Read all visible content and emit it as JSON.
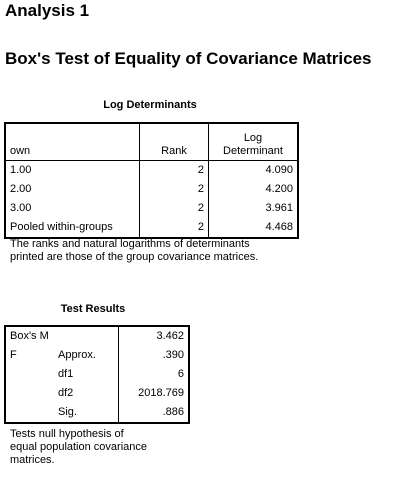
{
  "analysis_title": "Analysis 1",
  "test_title": "Box's Test of Equality of Covariance Matrices",
  "log_determinants": {
    "caption": "Log Determinants",
    "headers": {
      "group": "own",
      "rank": "Rank",
      "logdet_line1": "Log",
      "logdet_line2": "Determinant"
    },
    "rows": [
      {
        "group": "1.00",
        "rank": "2",
        "logdet": "4.090"
      },
      {
        "group": "2.00",
        "rank": "2",
        "logdet": "4.200"
      },
      {
        "group": "3.00",
        "rank": "2",
        "logdet": "3.961"
      },
      {
        "group": "Pooled within-groups",
        "rank": "2",
        "logdet": "4.468"
      }
    ],
    "note_line1": "The ranks and natural logarithms of determinants",
    "note_line2": "printed are those of the group covariance matrices."
  },
  "test_results": {
    "caption": "Test Results",
    "boxm_label": "Box's M",
    "boxm_value": "3.462",
    "f_label": "F",
    "rows": [
      {
        "label": "Approx.",
        "value": ".390"
      },
      {
        "label": "df1",
        "value": "6"
      },
      {
        "label": "df2",
        "value": "2018.769"
      },
      {
        "label": "Sig.",
        "value": ".886"
      }
    ],
    "note_line1": "Tests null hypothesis of",
    "note_line2": "equal population covariance",
    "note_line3": "matrices."
  }
}
